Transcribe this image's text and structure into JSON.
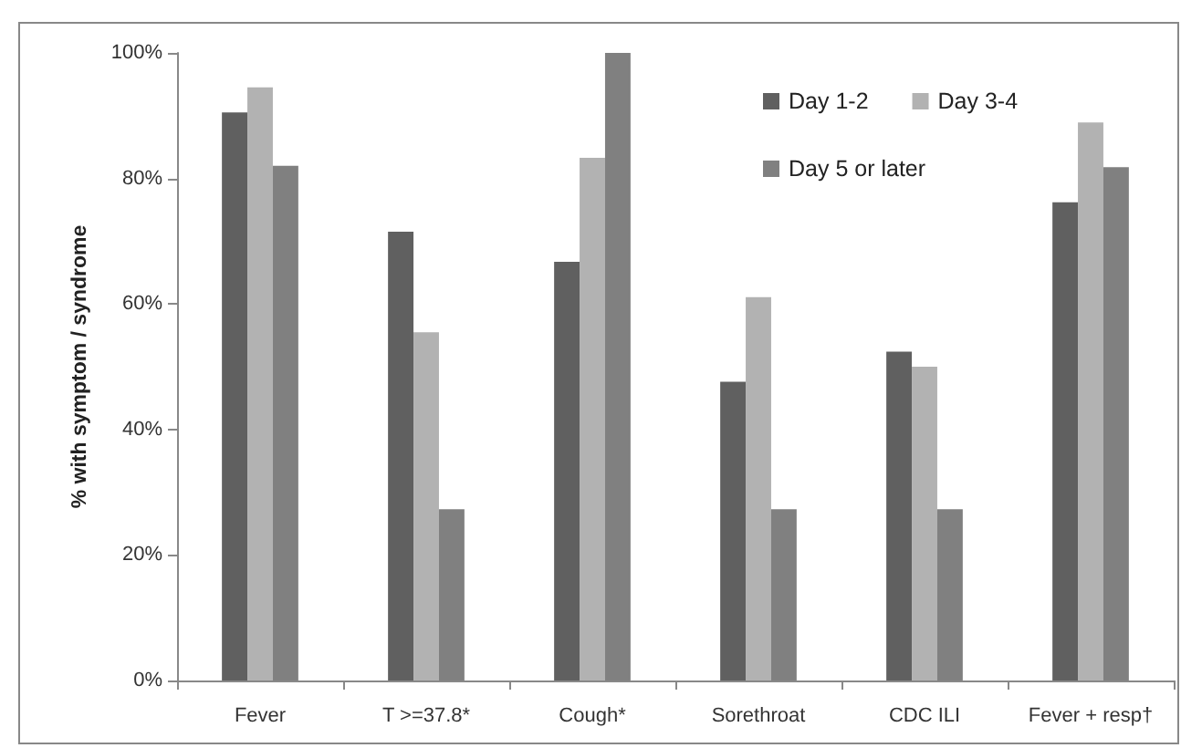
{
  "chart_data": {
    "type": "bar",
    "ylabel": "% with symptom / syndrome",
    "categories": [
      "Fever",
      "T >=37.8*",
      "Cough*",
      "Sorethroat",
      "CDC ILI",
      "Fever + resp†"
    ],
    "series": [
      {
        "name": "Day 1-2",
        "color": "#606060",
        "values": [
          90.5,
          71.5,
          66.7,
          47.6,
          52.4,
          76.2
        ]
      },
      {
        "name": "Day 3-4",
        "color": "#b2b2b2",
        "values": [
          94.5,
          55.5,
          83.3,
          61.1,
          50,
          88.9
        ]
      },
      {
        "name": "Day 5 or later",
        "color": "#808080",
        "values": [
          82,
          27.3,
          100,
          27.3,
          27.3,
          81.8
        ]
      }
    ],
    "ylim": [
      0,
      100
    ],
    "yticks": [
      {
        "value": 0,
        "label": "0%"
      },
      {
        "value": 20,
        "label": "20%"
      },
      {
        "value": 40,
        "label": "40%"
      },
      {
        "value": 60,
        "label": "60%"
      },
      {
        "value": 80,
        "label": "80%"
      },
      {
        "value": 100,
        "label": "100%"
      }
    ],
    "grid": false,
    "legend": "top right"
  }
}
